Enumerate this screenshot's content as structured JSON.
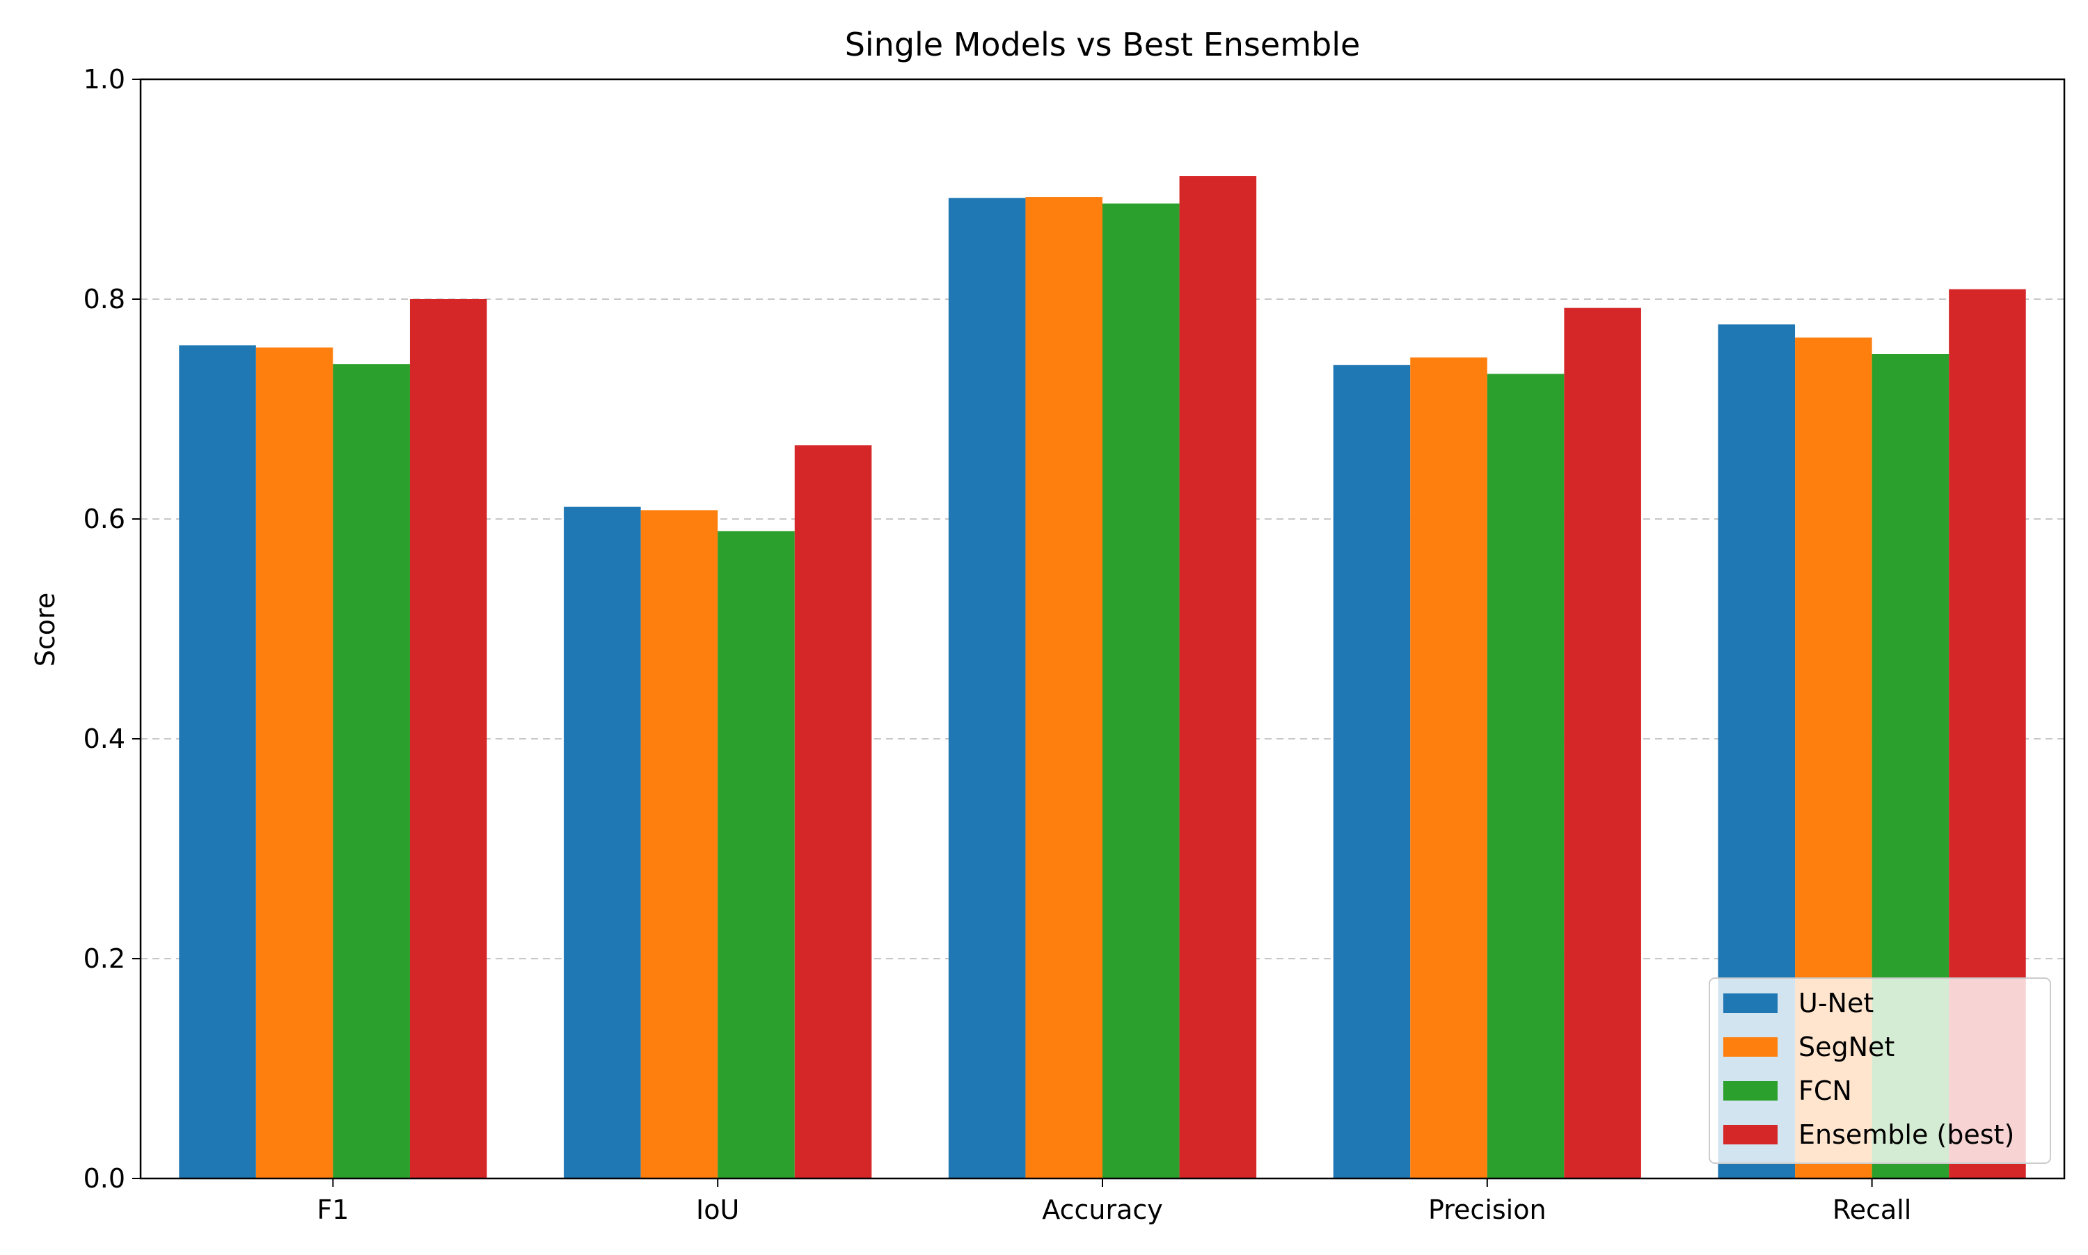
{
  "chart_data": {
    "type": "bar",
    "title": "Single Models vs Best Ensemble",
    "xlabel": "",
    "ylabel": "Score",
    "categories": [
      "F1",
      "IoU",
      "Accuracy",
      "Precision",
      "Recall"
    ],
    "ylim": [
      0,
      1.0
    ],
    "yticks": [
      "0.0",
      "0.2",
      "0.4",
      "0.6",
      "0.8",
      "1.0"
    ],
    "grid": "horizontal dashed",
    "legend_position": "lower-right",
    "series": [
      {
        "name": "U-Net",
        "color": "#1f77b4",
        "values": [
          0.758,
          0.611,
          0.892,
          0.74,
          0.777
        ]
      },
      {
        "name": "SegNet",
        "color": "#ff7f0e",
        "values": [
          0.756,
          0.608,
          0.893,
          0.747,
          0.765
        ]
      },
      {
        "name": "FCN",
        "color": "#2ca02c",
        "values": [
          0.741,
          0.589,
          0.887,
          0.732,
          0.75
        ]
      },
      {
        "name": "Ensemble (best)",
        "color": "#d62728",
        "values": [
          0.8,
          0.667,
          0.912,
          0.792,
          0.809
        ]
      }
    ]
  }
}
